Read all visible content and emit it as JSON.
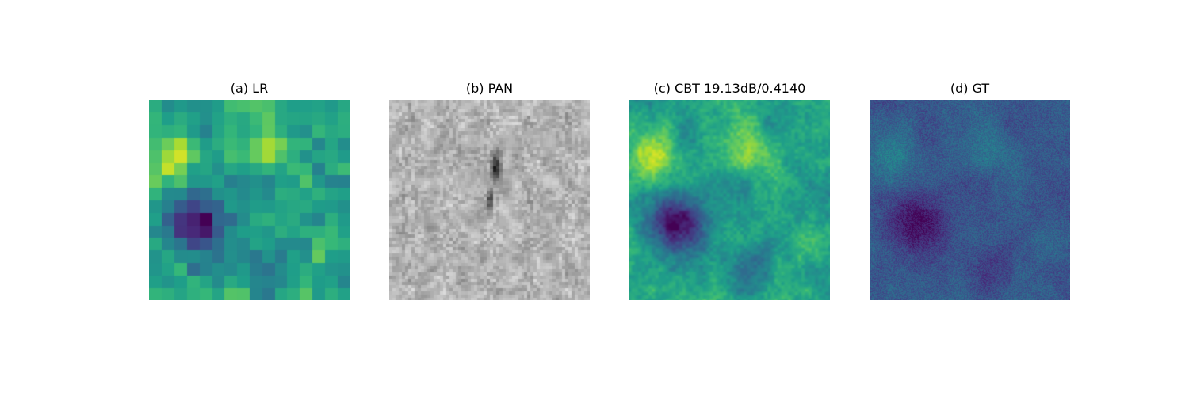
{
  "figure": {
    "panels": [
      {
        "title": "(a) LR",
        "colormap": "viridis",
        "style": "blocky"
      },
      {
        "title": "(b) PAN",
        "colormap": "gray",
        "style": "textured"
      },
      {
        "title": "(c) CBT 19.13dB/0.4140",
        "colormap": "viridis",
        "style": "smooth"
      },
      {
        "title": "(d) GT",
        "colormap": "viridis",
        "style": "detailed"
      }
    ]
  },
  "colors": {
    "viridis_dark": "#440154",
    "viridis_mid": "#21918c",
    "viridis_light": "#fde725",
    "gray_dark": "#000000",
    "gray_light": "#ffffff"
  }
}
